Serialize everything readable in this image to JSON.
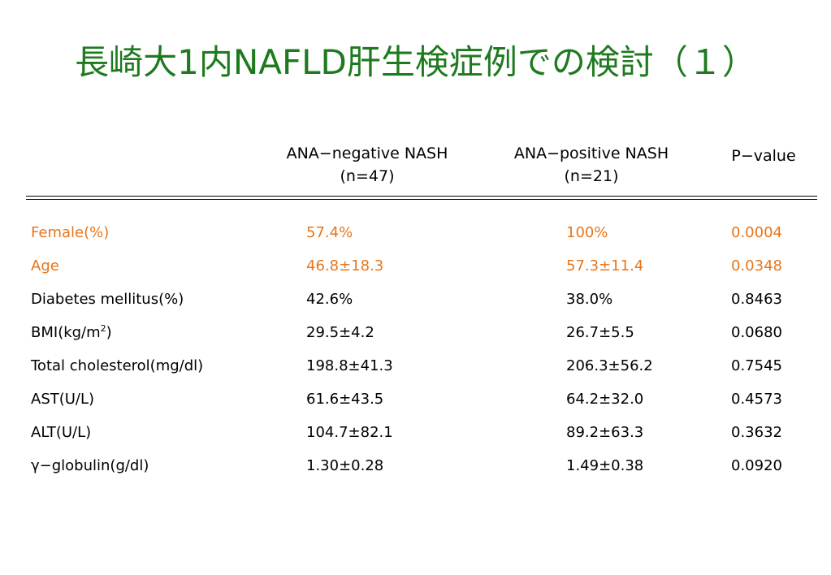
{
  "title": "長崎大1内NAFLD肝生検症例での検討（１）",
  "header": {
    "neg_line1": "ANA−negative NASH",
    "neg_line2": "(n=47)",
    "pos_line1": "ANA−positive NASH",
    "pos_line2": "(n=21)",
    "pvalue": "P−value"
  },
  "colors": {
    "title": "#1f7a1f",
    "highlight": "#e8751a"
  },
  "rows": [
    {
      "label": "Female(%)",
      "neg": "57.4%",
      "pos": "100%",
      "p": "0.0004",
      "highlight": true
    },
    {
      "label": "Age",
      "neg": "46.8±18.3",
      "pos": "57.3±11.4",
      "p": "0.0348",
      "highlight": true
    },
    {
      "label": "Diabetes mellitus(%)",
      "neg": "42.6%",
      "pos": "38.0%",
      "p": "0.8463",
      "highlight": false
    },
    {
      "label": "BMI(kg/m",
      "label_sup": "2",
      "label_tail": ")",
      "neg": "29.5±4.2",
      "pos": "26.7±5.5",
      "p": "0.0680",
      "highlight": false
    },
    {
      "label": "Total cholesterol(mg/dl)",
      "neg": "198.8±41.3",
      "pos": "206.3±56.2",
      "p": "0.7545",
      "highlight": false
    },
    {
      "label": "AST(U/L)",
      "neg": "61.6±43.5",
      "pos": "64.2±32.0",
      "p": "0.4573",
      "highlight": false
    },
    {
      "label": "ALT(U/L)",
      "neg": "104.7±82.1",
      "pos": "89.2±63.3",
      "p": "0.3632",
      "highlight": false
    },
    {
      "label": "γ−globulin(g/dl)",
      "neg": "1.30±0.28",
      "pos": "1.49±0.38",
      "p": "0.0920",
      "highlight": false
    }
  ]
}
